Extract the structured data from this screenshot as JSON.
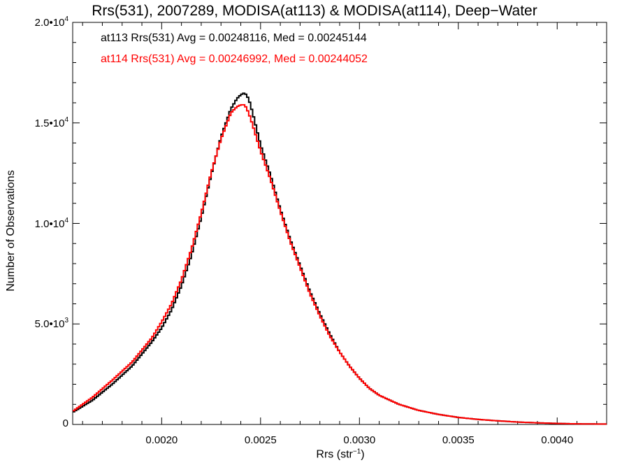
{
  "chart_data": {
    "type": "line",
    "step": true,
    "title": "Rrs(531), 2007289, MODISA(at113) & MODISA(at114), Deep−Water",
    "xlabel_text": "Rrs (str",
    "xlabel_sup": "−1",
    "xlabel_close": ")",
    "ylabel": "Number of Observations",
    "xlim": [
      0.00155,
      0.00425
    ],
    "ylim": [
      0,
      20000
    ],
    "grid": false,
    "x_ticks": [
      "0.0020",
      "0.0025",
      "0.0030",
      "0.0035",
      "0.0040"
    ],
    "x_tick_values": [
      0.002,
      0.0025,
      0.003,
      0.0035,
      0.004
    ],
    "y_ticks": [
      {
        "value": 0,
        "base": "0",
        "sup": ""
      },
      {
        "value": 5000,
        "base": "5.0•10",
        "sup": "3"
      },
      {
        "value": 10000,
        "base": "1.0•10",
        "sup": "4"
      },
      {
        "value": 15000,
        "base": "1.5•10",
        "sup": "4"
      },
      {
        "value": 20000,
        "base": "2.0•10",
        "sup": "4"
      }
    ],
    "legend_placement": "top-left",
    "annotations": [
      "at113 Rrs(531) Avg = 0.00248116, Med = 0.00245144",
      "at114 Rrs(531) Avg = 0.00246992, Med = 0.00244052"
    ],
    "colors": {
      "at113": "#000000",
      "at114": "#ff0000"
    },
    "series": [
      {
        "name": "at113",
        "color": "#000000",
        "x": [
          0.00155,
          0.00165,
          0.00175,
          0.00185,
          0.0019,
          0.00195,
          0.002,
          0.00205,
          0.0021,
          0.00215,
          0.0022,
          0.00225,
          0.0023,
          0.00235,
          0.00238,
          0.0024,
          0.00242,
          0.00244,
          0.00246,
          0.0025,
          0.00255,
          0.0026,
          0.00265,
          0.0027,
          0.00275,
          0.0028,
          0.00285,
          0.0029,
          0.00295,
          0.003,
          0.00305,
          0.0031,
          0.0032,
          0.0033,
          0.0034,
          0.0035,
          0.0036,
          0.0037,
          0.0038,
          0.0039,
          0.004,
          0.0041,
          0.00425
        ],
        "y": [
          600,
          1200,
          2000,
          2900,
          3500,
          4100,
          4800,
          5700,
          6900,
          8400,
          10300,
          12400,
          14300,
          15700,
          16200,
          16400,
          16500,
          16200,
          15500,
          13900,
          12400,
          10700,
          9200,
          7900,
          6600,
          5500,
          4500,
          3600,
          2900,
          2300,
          1800,
          1450,
          1000,
          700,
          500,
          350,
          250,
          180,
          120,
          80,
          50,
          30,
          20
        ]
      },
      {
        "name": "at114",
        "color": "#ff0000",
        "x": [
          0.00155,
          0.00165,
          0.00175,
          0.00185,
          0.0019,
          0.00195,
          0.002,
          0.00205,
          0.0021,
          0.00215,
          0.0022,
          0.00225,
          0.0023,
          0.00235,
          0.00238,
          0.0024,
          0.00242,
          0.00244,
          0.00246,
          0.0025,
          0.00255,
          0.0026,
          0.00265,
          0.0027,
          0.00275,
          0.0028,
          0.00285,
          0.0029,
          0.00295,
          0.003,
          0.00305,
          0.0031,
          0.0032,
          0.0033,
          0.0034,
          0.0035,
          0.0036,
          0.0037,
          0.0038,
          0.0039,
          0.004,
          0.0041,
          0.00425
        ],
        "y": [
          650,
          1350,
          2200,
          3100,
          3700,
          4300,
          5100,
          6000,
          7200,
          8700,
          10500,
          12500,
          14200,
          15500,
          15800,
          15900,
          15900,
          15500,
          14900,
          13600,
          12200,
          10600,
          9100,
          7800,
          6500,
          5400,
          4400,
          3600,
          2900,
          2300,
          1800,
          1450,
          1000,
          700,
          500,
          350,
          250,
          180,
          120,
          80,
          50,
          30,
          20
        ]
      }
    ]
  }
}
